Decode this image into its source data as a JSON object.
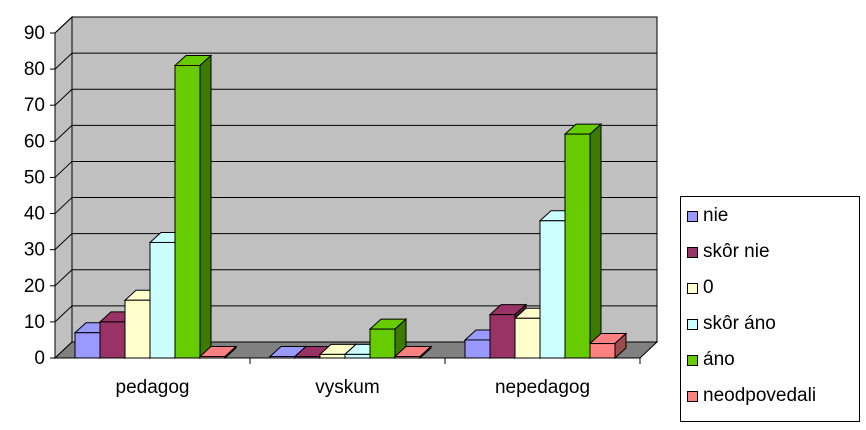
{
  "chart_data": {
    "type": "bar",
    "categories": [
      "pedagog",
      "vyskum",
      "nepedagog"
    ],
    "ylim": [
      0,
      90
    ],
    "yticks": [
      "0",
      "10",
      "20",
      "30",
      "40",
      "50",
      "60",
      "70",
      "80",
      "90"
    ],
    "series": [
      {
        "name": "nie",
        "color": "#9999ff",
        "values": [
          7,
          0,
          5
        ]
      },
      {
        "name": "skôr nie",
        "color": "#993366",
        "values": [
          10,
          0,
          12
        ]
      },
      {
        "name": "0",
        "color": "#ffffcc",
        "values": [
          16,
          1,
          11
        ]
      },
      {
        "name": "skôr áno",
        "color": "#ccffff",
        "values": [
          32,
          1,
          38
        ]
      },
      {
        "name": "áno",
        "color": "#66cc00",
        "values": [
          81,
          8,
          62
        ]
      },
      {
        "name": "neodpovedali",
        "color": "#ff8080",
        "values": [
          0,
          0,
          4
        ]
      }
    ],
    "grid": true,
    "legend_position": "right",
    "wall_color": "#c0c0c0",
    "floor_color": "#808080"
  }
}
